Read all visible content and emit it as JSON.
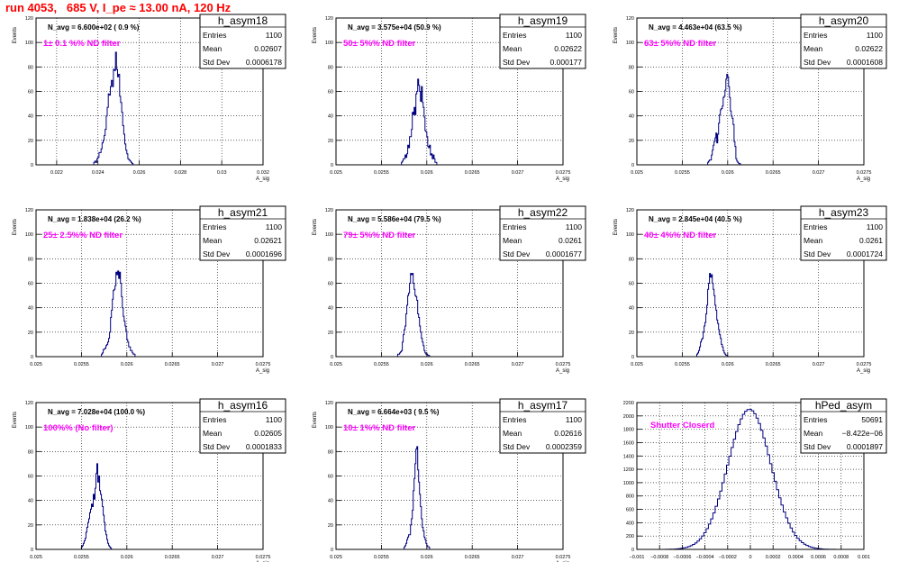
{
  "run_title": "run 4053,   685 V, I_pe ≈ 13.00 nA, 120 Hz",
  "colors": {
    "histogram": "#000080",
    "title_text": "#ff0000",
    "filter_text": "#ff00ff",
    "grid": "#000000"
  },
  "stats_labels": {
    "entries": "Entries",
    "mean": "Mean",
    "std": "Std Dev"
  },
  "chart_data": [
    {
      "type": "histogram",
      "name": "h_asym18",
      "entries": "1100",
      "mean": "0.02607",
      "std": "0.0006178",
      "navg": "N_avg = 6.600e+02 ( 0.9 %)",
      "filter": "1± 0.1 %% ND filter",
      "xlabel": "A_sig",
      "ylabel": "Events",
      "xlim": [
        0.021,
        0.032
      ],
      "ylim": [
        0,
        120
      ],
      "xticks": [
        0.022,
        0.024,
        0.026,
        0.028,
        0.03,
        0.032
      ],
      "xtick_labels": [
        "0.022",
        "0.024",
        "0.026",
        "0.028",
        "0.03",
        "0.032"
      ],
      "yticks": [
        0,
        20,
        40,
        60,
        80,
        100,
        120
      ],
      "bins": [
        0.0238,
        5e-05,
        [
          2,
          3,
          2,
          5,
          6,
          10,
          10,
          13,
          18,
          20,
          24,
          29,
          40,
          47,
          58,
          57,
          64,
          69,
          64,
          78,
          77,
          92,
          78,
          72,
          74,
          56,
          51,
          43,
          32,
          25,
          17,
          12,
          9,
          5,
          4,
          3,
          2,
          1
        ]
      ]
    },
    {
      "type": "histogram",
      "name": "h_asym19",
      "entries": "1100",
      "mean": "0.02622",
      "std": "0.000177",
      "navg": "N_avg = 3.575e+04 (50.9 %)",
      "filter": "50± 5%% ND filter",
      "xlabel": "A_sig",
      "ylabel": "Events",
      "xlim": [
        0.025,
        0.0275
      ],
      "ylim": [
        0,
        120
      ],
      "xticks": [
        0.025,
        0.0255,
        0.026,
        0.0265,
        0.027,
        0.0275
      ],
      "xtick_labels": [
        "0.025",
        "0.0255",
        "0.026",
        "0.0265",
        "0.027",
        "0.0275"
      ],
      "yticks": [
        0,
        20,
        40,
        60,
        80,
        100,
        120
      ],
      "bins": [
        0.02572,
        1e-05,
        [
          2,
          3,
          5,
          5,
          8,
          6,
          9,
          16,
          14,
          23,
          23,
          29,
          43,
          41,
          47,
          41,
          58,
          60,
          70,
          65,
          60,
          52,
          64,
          51,
          47,
          39,
          28,
          27,
          23,
          15,
          14,
          16,
          8,
          9,
          5,
          8,
          5,
          2,
          2
        ]
      ]
    },
    {
      "type": "histogram",
      "name": "h_asym20",
      "entries": "1100",
      "mean": "0.02622",
      "std": "0.0001608",
      "navg": "N_avg = 4.463e+04 (63.5 %)",
      "filter": "63± 5%% ND filter",
      "xlabel": "A_sig",
      "ylabel": "Events",
      "xlim": [
        0.025,
        0.0275
      ],
      "ylim": [
        0,
        120
      ],
      "xticks": [
        0.025,
        0.0255,
        0.026,
        0.0265,
        0.027,
        0.0275
      ],
      "xtick_labels": [
        "0.025",
        "0.0255",
        "0.026",
        "0.0265",
        "0.027",
        "0.0275"
      ],
      "yticks": [
        0,
        20,
        40,
        60,
        80,
        100,
        120
      ],
      "bins": [
        0.02578,
        1e-05,
        [
          2,
          3,
          4,
          4,
          8,
          12,
          16,
          19,
          22,
          26,
          18,
          25,
          34,
          41,
          45,
          46,
          48,
          55,
          56,
          61,
          70,
          74,
          72,
          64,
          55,
          44,
          40,
          38,
          33,
          19,
          15,
          5,
          3,
          2,
          1,
          1
        ]
      ]
    },
    {
      "type": "histogram",
      "name": "h_asym21",
      "entries": "1100",
      "mean": "0.02621",
      "std": "0.0001696",
      "navg": "N_avg = 1.838e+04 (26.2 %)",
      "filter": "25± 2.5%% ND filter",
      "xlabel": "A_sig",
      "ylabel": "Events",
      "xlim": [
        0.025,
        0.0275
      ],
      "ylim": [
        0,
        120
      ],
      "xticks": [
        0.025,
        0.0255,
        0.026,
        0.0265,
        0.027,
        0.0275
      ],
      "xtick_labels": [
        "0.025",
        "0.0255",
        "0.026",
        "0.0265",
        "0.027",
        "0.0275"
      ],
      "yticks": [
        0,
        20,
        40,
        60,
        80,
        100,
        120
      ],
      "bins": [
        0.02572,
        1e-05,
        [
          2,
          3,
          6,
          6,
          7,
          9,
          10,
          12,
          15,
          20,
          32,
          38,
          47,
          54,
          55,
          58,
          69,
          67,
          70,
          64,
          69,
          60,
          49,
          40,
          33,
          29,
          25,
          21,
          14,
          12,
          8,
          8,
          5,
          5,
          3,
          2,
          2
        ]
      ]
    },
    {
      "type": "histogram",
      "name": "h_asym22",
      "entries": "1100",
      "mean": "0.0261",
      "std": "0.0001677",
      "navg": "N_avg = 5.586e+04 (79.5 %)",
      "filter": "79± 5%% ND filter",
      "xlabel": "A_sig",
      "ylabel": "Events",
      "xlim": [
        0.025,
        0.0275
      ],
      "ylim": [
        0,
        120
      ],
      "xticks": [
        0.025,
        0.0255,
        0.026,
        0.0265,
        0.027,
        0.0275
      ],
      "xtick_labels": [
        "0.025",
        "0.0255",
        "0.026",
        "0.0265",
        "0.027",
        "0.0275"
      ],
      "yticks": [
        0,
        20,
        40,
        60,
        80,
        100,
        120
      ],
      "bins": [
        0.02568,
        1e-05,
        [
          2,
          2,
          3,
          4,
          5,
          12,
          18,
          22,
          25,
          35,
          42,
          50,
          52,
          60,
          68,
          67,
          68,
          60,
          55,
          50,
          49,
          46,
          35,
          32,
          25,
          20,
          15,
          12,
          9,
          5,
          3,
          2,
          2,
          1,
          1
        ]
      ]
    },
    {
      "type": "histogram",
      "name": "h_asym23",
      "entries": "1100",
      "mean": "0.0261",
      "std": "0.0001724",
      "navg": "N_avg = 2.845e+04 (40.5 %)",
      "filter": "40± 4%% ND filter",
      "xlabel": "A_sig",
      "ylabel": "Events",
      "xlim": [
        0.025,
        0.0275
      ],
      "ylim": [
        0,
        120
      ],
      "xticks": [
        0.025,
        0.0255,
        0.026,
        0.0265,
        0.027,
        0.0275
      ],
      "xtick_labels": [
        "0.025",
        "0.0255",
        "0.026",
        "0.0265",
        "0.027",
        "0.0275"
      ],
      "yticks": [
        0,
        20,
        40,
        60,
        80,
        100,
        120
      ],
      "bins": [
        0.02566,
        1e-05,
        [
          2,
          3,
          5,
          8,
          12,
          14,
          15,
          20,
          25,
          28,
          35,
          42,
          55,
          60,
          68,
          65,
          67,
          60,
          55,
          50,
          42,
          38,
          30,
          27,
          22,
          18,
          15,
          10,
          8,
          5,
          3,
          2,
          1,
          1
        ]
      ]
    },
    {
      "type": "histogram",
      "name": "h_asym16",
      "entries": "1100",
      "mean": "0.02605",
      "std": "0.0001833",
      "navg": "N_avg = 7.028e+04 (100.0 %)",
      "filter": "100%% (No filter)",
      "xlabel": "A_sig",
      "ylabel": "Events",
      "xlim": [
        0.025,
        0.0275
      ],
      "ylim": [
        0,
        120
      ],
      "xticks": [
        0.025,
        0.0255,
        0.026,
        0.0265,
        0.027,
        0.0275
      ],
      "xtick_labels": [
        "0.025",
        "0.0255",
        "0.026",
        "0.0265",
        "0.027",
        "0.0275"
      ],
      "yticks": [
        0,
        20,
        40,
        60,
        80,
        100,
        120
      ],
      "bins": [
        0.0255,
        1e-05,
        [
          2,
          3,
          5,
          7,
          9,
          14,
          18,
          22,
          25,
          30,
          33,
          37,
          35,
          45,
          41,
          50,
          62,
          70,
          55,
          60,
          48,
          45,
          41,
          35,
          28,
          22,
          15,
          12,
          8,
          5,
          3,
          2,
          1
        ]
      ]
    },
    {
      "type": "histogram",
      "name": "h_asym17",
      "entries": "1100",
      "mean": "0.02616",
      "std": "0.0002359",
      "navg": "N_avg = 6.664e+03 ( 9.5 %)",
      "filter": "10± 1%% ND filter",
      "xlabel": "A_sig",
      "ylabel": "Events",
      "xlim": [
        0.025,
        0.0275
      ],
      "ylim": [
        0,
        120
      ],
      "xticks": [
        0.025,
        0.0255,
        0.026,
        0.0265,
        0.027,
        0.0275
      ],
      "xtick_labels": [
        "0.025",
        "0.0255",
        "0.026",
        "0.0265",
        "0.027",
        "0.0275"
      ],
      "yticks": [
        0,
        20,
        40,
        60,
        80,
        100,
        120
      ],
      "bins": [
        0.02575,
        1e-05,
        [
          2,
          3,
          5,
          8,
          10,
          12,
          12,
          20,
          25,
          32,
          48,
          58,
          70,
          82,
          84,
          65,
          55,
          45,
          35,
          25,
          18,
          15,
          10,
          8,
          5,
          3,
          2,
          2
        ]
      ]
    },
    {
      "type": "histogram",
      "name": "hPed_asym",
      "entries": "50691",
      "mean": "−8.422e−06",
      "std": "0.0001897",
      "navg": "",
      "filter": "Shutter Closerd",
      "xlabel": "",
      "ylabel": "",
      "xlim": [
        -0.001,
        0.001
      ],
      "ylim": [
        0,
        2200
      ],
      "xticks": [
        -0.001,
        -0.0008,
        -0.0006,
        -0.0004,
        -0.0002,
        0,
        0.0002,
        0.0004,
        0.0006,
        0.0008,
        0.001
      ],
      "xtick_labels": [
        "−0.001",
        "−0.0008",
        "−0.0006",
        "−0.0004",
        "−0.0002",
        "0",
        "0.0002",
        "0.0004",
        "0.0006",
        "0.0008",
        "0.001"
      ],
      "yticks": [
        0,
        200,
        400,
        600,
        800,
        1000,
        1200,
        1400,
        1600,
        1800,
        2000,
        2200
      ],
      "gauss": {
        "mu": -8.4e-06,
        "sigma": 0.00019,
        "peak": 2100,
        "lo": -0.00075,
        "hi": 0.00075,
        "w": 2e-05
      }
    }
  ]
}
